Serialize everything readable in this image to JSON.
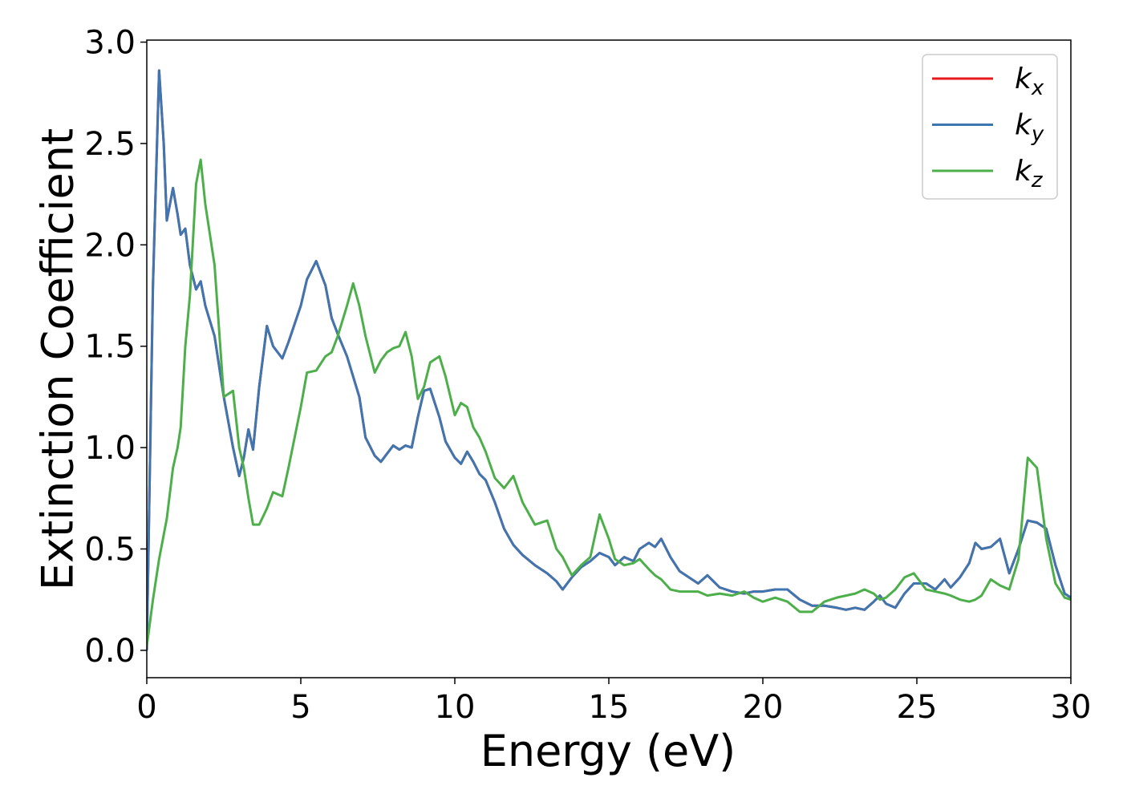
{
  "chart_data": {
    "type": "line",
    "xlabel": "Energy (eV)",
    "ylabel": "Extinction Coefficient",
    "xlim": [
      0,
      30
    ],
    "ylim": [
      -0.135,
      3.01
    ],
    "xticks": [
      0,
      5,
      10,
      15,
      20,
      25,
      30
    ],
    "yticks": [
      {
        "value": 0,
        "label": "0.0"
      },
      0.5,
      {
        "value": 1,
        "label": "1.0"
      },
      1.5,
      {
        "value": 2,
        "label": "2.0"
      },
      2.5,
      {
        "value": 3,
        "label": "3.0"
      }
    ],
    "legend": "upper right",
    "x": [
      0,
      0.2,
      0.4,
      0.55,
      0.65,
      0.85,
      1.0,
      1.1,
      1.25,
      1.4,
      1.6,
      1.75,
      1.9,
      2.2,
      2.5,
      2.8,
      3.0,
      3.15,
      3.3,
      3.45,
      3.65,
      3.9,
      4.1,
      4.4,
      4.6,
      5.0,
      5.2,
      5.5,
      5.8,
      6.0,
      6.2,
      6.5,
      6.7,
      6.9,
      7.1,
      7.4,
      7.6,
      7.8,
      8.0,
      8.2,
      8.4,
      8.6,
      8.8,
      9.0,
      9.2,
      9.5,
      9.7,
      10.0,
      10.2,
      10.4,
      10.6,
      10.8,
      11.0,
      11.3,
      11.6,
      11.9,
      12.2,
      12.6,
      13.0,
      13.3,
      13.5,
      13.8,
      14.1,
      14.4,
      14.7,
      15.0,
      15.2,
      15.5,
      15.8,
      16.0,
      16.3,
      16.5,
      16.7,
      17.0,
      17.3,
      17.6,
      17.9,
      18.2,
      18.6,
      19.0,
      19.4,
      19.7,
      20.0,
      20.4,
      20.8,
      21.2,
      21.6,
      22.0,
      22.4,
      22.7,
      23.0,
      23.3,
      23.6,
      23.8,
      24.0,
      24.3,
      24.6,
      24.9,
      25.3,
      25.6,
      25.9,
      26.1,
      26.4,
      26.7,
      26.9,
      27.1,
      27.4,
      27.7,
      28.0,
      28.3,
      28.6,
      28.9,
      29.2,
      29.5,
      29.8,
      30.0
    ],
    "series": [
      {
        "name": "kx",
        "color": "#e41a1c",
        "values": [
          0,
          1.8,
          2.86,
          2.5,
          2.12,
          2.28,
          2.15,
          2.05,
          2.08,
          1.9,
          1.78,
          1.82,
          1.7,
          1.55,
          1.25,
          1.0,
          0.86,
          0.95,
          1.09,
          0.99,
          1.3,
          1.6,
          1.5,
          1.44,
          1.52,
          1.7,
          1.83,
          1.92,
          1.8,
          1.64,
          1.56,
          1.45,
          1.35,
          1.25,
          1.05,
          0.96,
          0.93,
          0.97,
          1.01,
          0.99,
          1.01,
          1.0,
          1.15,
          1.28,
          1.29,
          1.15,
          1.03,
          0.95,
          0.92,
          0.98,
          0.93,
          0.87,
          0.84,
          0.73,
          0.6,
          0.52,
          0.47,
          0.42,
          0.38,
          0.34,
          0.3,
          0.36,
          0.41,
          0.44,
          0.48,
          0.46,
          0.42,
          0.46,
          0.44,
          0.5,
          0.53,
          0.51,
          0.55,
          0.46,
          0.39,
          0.36,
          0.33,
          0.37,
          0.31,
          0.29,
          0.28,
          0.29,
          0.29,
          0.3,
          0.3,
          0.25,
          0.22,
          0.22,
          0.21,
          0.2,
          0.21,
          0.2,
          0.24,
          0.27,
          0.23,
          0.21,
          0.28,
          0.33,
          0.33,
          0.3,
          0.35,
          0.31,
          0.36,
          0.43,
          0.53,
          0.5,
          0.51,
          0.55,
          0.38,
          0.5,
          0.64,
          0.63,
          0.6,
          0.42,
          0.28,
          0.26
        ]
      },
      {
        "name": "ky",
        "color": "#3d76b0",
        "values": [
          0,
          1.8,
          2.86,
          2.5,
          2.12,
          2.28,
          2.15,
          2.05,
          2.08,
          1.9,
          1.78,
          1.82,
          1.7,
          1.55,
          1.25,
          1.0,
          0.86,
          0.95,
          1.09,
          0.99,
          1.3,
          1.6,
          1.5,
          1.44,
          1.52,
          1.7,
          1.83,
          1.92,
          1.8,
          1.64,
          1.56,
          1.45,
          1.35,
          1.25,
          1.05,
          0.96,
          0.93,
          0.97,
          1.01,
          0.99,
          1.01,
          1.0,
          1.15,
          1.28,
          1.29,
          1.15,
          1.03,
          0.95,
          0.92,
          0.98,
          0.93,
          0.87,
          0.84,
          0.73,
          0.6,
          0.52,
          0.47,
          0.42,
          0.38,
          0.34,
          0.3,
          0.36,
          0.41,
          0.44,
          0.48,
          0.46,
          0.42,
          0.46,
          0.44,
          0.5,
          0.53,
          0.51,
          0.55,
          0.46,
          0.39,
          0.36,
          0.33,
          0.37,
          0.31,
          0.29,
          0.28,
          0.29,
          0.29,
          0.3,
          0.3,
          0.25,
          0.22,
          0.22,
          0.21,
          0.2,
          0.21,
          0.2,
          0.24,
          0.27,
          0.23,
          0.21,
          0.28,
          0.33,
          0.33,
          0.3,
          0.35,
          0.31,
          0.36,
          0.43,
          0.53,
          0.5,
          0.51,
          0.55,
          0.38,
          0.5,
          0.64,
          0.63,
          0.6,
          0.42,
          0.28,
          0.26
        ]
      },
      {
        "name": "kz",
        "color": "#4daf4a",
        "values": [
          0.02,
          0.25,
          0.45,
          0.57,
          0.65,
          0.9,
          1.0,
          1.1,
          1.5,
          1.75,
          2.3,
          2.42,
          2.2,
          1.9,
          1.25,
          1.28,
          1.0,
          0.9,
          0.75,
          0.62,
          0.62,
          0.7,
          0.78,
          0.76,
          0.9,
          1.2,
          1.37,
          1.38,
          1.45,
          1.47,
          1.55,
          1.7,
          1.81,
          1.7,
          1.55,
          1.37,
          1.43,
          1.47,
          1.49,
          1.5,
          1.57,
          1.45,
          1.24,
          1.3,
          1.42,
          1.45,
          1.35,
          1.16,
          1.22,
          1.2,
          1.1,
          1.05,
          0.98,
          0.85,
          0.8,
          0.86,
          0.73,
          0.62,
          0.64,
          0.5,
          0.46,
          0.37,
          0.42,
          0.46,
          0.67,
          0.55,
          0.45,
          0.42,
          0.43,
          0.45,
          0.4,
          0.37,
          0.35,
          0.3,
          0.29,
          0.29,
          0.29,
          0.27,
          0.28,
          0.27,
          0.29,
          0.26,
          0.24,
          0.26,
          0.24,
          0.19,
          0.19,
          0.24,
          0.26,
          0.27,
          0.28,
          0.3,
          0.28,
          0.25,
          0.26,
          0.3,
          0.36,
          0.38,
          0.3,
          0.29,
          0.28,
          0.27,
          0.25,
          0.24,
          0.25,
          0.27,
          0.35,
          0.32,
          0.3,
          0.45,
          0.95,
          0.9,
          0.55,
          0.33,
          0.26,
          0.25
        ]
      }
    ]
  }
}
